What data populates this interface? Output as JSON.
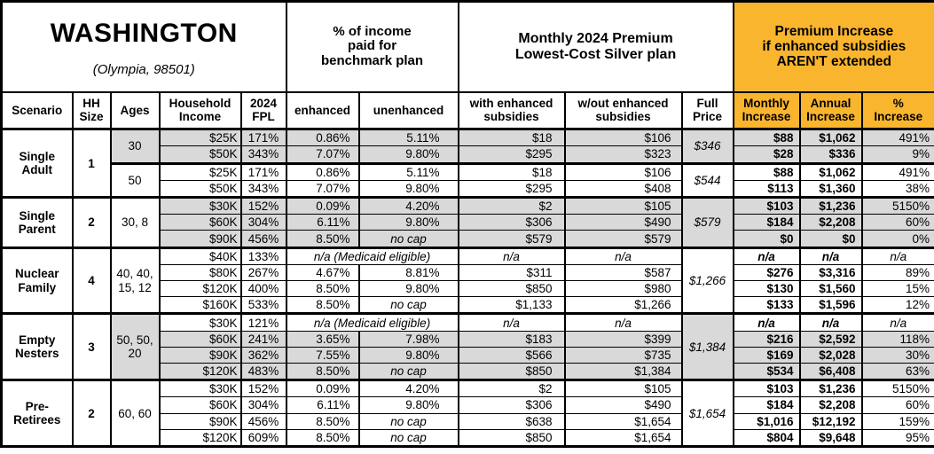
{
  "title": {
    "state": "WASHINGTON",
    "location": "(Olympia, 98501)"
  },
  "colors": {
    "accent_orange": "#FAB52E",
    "row_shade_gray": "#D9D9D9",
    "border": "#000000"
  },
  "group_headers": {
    "benchmark": "% of income\npaid for\nbenchmark plan",
    "premium": "Monthly 2024 Premium\nLowest-Cost Silver plan",
    "increase": "Premium Increase\nif enhanced subsidies\nAREN'T extended"
  },
  "columns": [
    "Scenario",
    "HH\nSize",
    "Ages",
    "Household\nIncome",
    "2024\nFPL",
    "enhanced",
    "unenhanced",
    "with enhanced\nsubsidies",
    "w/out enhanced\nsubsidies",
    "Full\nPrice",
    "Monthly\nIncrease",
    "Annual\nIncrease",
    "%\nIncrease"
  ],
  "scenarios": [
    {
      "name": "Single Adult",
      "hh_size": "1",
      "groups": [
        {
          "ages": "30",
          "ages_shaded": true,
          "full_price": "$346",
          "full_shaded": true,
          "rows": [
            {
              "income": "$25K",
              "fpl": "171%",
              "enhanced": "0.86%",
              "unenhanced": "5.11%",
              "with_subsidies": "$18",
              "without_subsidies": "$106",
              "monthly_increase": "$88",
              "annual_increase": "$1,062",
              "pct_increase": "491%",
              "shaded": true
            },
            {
              "income": "$50K",
              "fpl": "343%",
              "enhanced": "7.07%",
              "unenhanced": "9.80%",
              "with_subsidies": "$295",
              "without_subsidies": "$323",
              "monthly_increase": "$28",
              "annual_increase": "$336",
              "pct_increase": "9%",
              "shaded": true
            }
          ]
        },
        {
          "ages": "50",
          "ages_shaded": false,
          "full_price": "$544",
          "full_shaded": false,
          "rows": [
            {
              "income": "$25K",
              "fpl": "171%",
              "enhanced": "0.86%",
              "unenhanced": "5.11%",
              "with_subsidies": "$18",
              "without_subsidies": "$106",
              "monthly_increase": "$88",
              "annual_increase": "$1,062",
              "pct_increase": "491%",
              "shaded": false
            },
            {
              "income": "$50K",
              "fpl": "343%",
              "enhanced": "7.07%",
              "unenhanced": "9.80%",
              "with_subsidies": "$295",
              "without_subsidies": "$408",
              "monthly_increase": "$113",
              "annual_increase": "$1,360",
              "pct_increase": "38%",
              "shaded": false
            }
          ]
        }
      ]
    },
    {
      "name": "Single Parent",
      "hh_size": "2",
      "groups": [
        {
          "ages": "30, 8",
          "ages_shaded": false,
          "full_price": "$579",
          "full_shaded": true,
          "rows": [
            {
              "income": "$30K",
              "fpl": "152%",
              "enhanced": "0.09%",
              "unenhanced": "4.20%",
              "with_subsidies": "$2",
              "without_subsidies": "$105",
              "monthly_increase": "$103",
              "annual_increase": "$1,236",
              "pct_increase": "5150%",
              "shaded": true
            },
            {
              "income": "$60K",
              "fpl": "304%",
              "enhanced": "6.11%",
              "unenhanced": "9.80%",
              "with_subsidies": "$306",
              "without_subsidies": "$490",
              "monthly_increase": "$184",
              "annual_increase": "$2,208",
              "pct_increase": "60%",
              "shaded": true
            },
            {
              "income": "$90K",
              "fpl": "456%",
              "enhanced": "8.50%",
              "unenhanced": "no cap",
              "with_subsidies": "$579",
              "without_subsidies": "$579",
              "monthly_increase": "$0",
              "annual_increase": "$0",
              "pct_increase": "0%",
              "shaded": true
            }
          ]
        }
      ]
    },
    {
      "name": "Nuclear Family",
      "hh_size": "4",
      "groups": [
        {
          "ages": "40, 40, 15, 12",
          "ages_shaded": false,
          "full_price": "$1,266",
          "full_shaded": false,
          "rows": [
            {
              "income": "$40K",
              "fpl": "133%",
              "medicaid_note": "n/a (Medicaid eligible)",
              "with_subsidies": "n/a",
              "without_subsidies": "n/a",
              "monthly_increase": "n/a",
              "annual_increase": "n/a",
              "pct_increase": "n/a",
              "shaded": false
            },
            {
              "income": "$80K",
              "fpl": "267%",
              "enhanced": "4.67%",
              "unenhanced": "8.81%",
              "with_subsidies": "$311",
              "without_subsidies": "$587",
              "monthly_increase": "$276",
              "annual_increase": "$3,316",
              "pct_increase": "89%",
              "shaded": false
            },
            {
              "income": "$120K",
              "fpl": "400%",
              "enhanced": "8.50%",
              "unenhanced": "9.80%",
              "with_subsidies": "$850",
              "without_subsidies": "$980",
              "monthly_increase": "$130",
              "annual_increase": "$1,560",
              "pct_increase": "15%",
              "shaded": false
            },
            {
              "income": "$160K",
              "fpl": "533%",
              "enhanced": "8.50%",
              "unenhanced": "no cap",
              "with_subsidies": "$1,133",
              "without_subsidies": "$1,266",
              "monthly_increase": "$133",
              "annual_increase": "$1,596",
              "pct_increase": "12%",
              "shaded": false
            }
          ]
        }
      ]
    },
    {
      "name": "Empty Nesters",
      "hh_size": "3",
      "groups": [
        {
          "ages": "50, 50, 20",
          "ages_shaded": true,
          "full_price": "$1,384",
          "full_shaded": true,
          "rows": [
            {
              "income": "$30K",
              "fpl": "121%",
              "medicaid_note": "n/a (Medicaid eligible)",
              "with_subsidies": "n/a",
              "without_subsidies": "n/a",
              "monthly_increase": "n/a",
              "annual_increase": "n/a",
              "pct_increase": "n/a",
              "shaded": false
            },
            {
              "income": "$60K",
              "fpl": "241%",
              "enhanced": "3.65%",
              "unenhanced": "7.98%",
              "with_subsidies": "$183",
              "without_subsidies": "$399",
              "monthly_increase": "$216",
              "annual_increase": "$2,592",
              "pct_increase": "118%",
              "shaded": true
            },
            {
              "income": "$90K",
              "fpl": "362%",
              "enhanced": "7.55%",
              "unenhanced": "9.80%",
              "with_subsidies": "$566",
              "without_subsidies": "$735",
              "monthly_increase": "$169",
              "annual_increase": "$2,028",
              "pct_increase": "30%",
              "shaded": true
            },
            {
              "income": "$120K",
              "fpl": "483%",
              "enhanced": "8.50%",
              "unenhanced": "no cap",
              "with_subsidies": "$850",
              "without_subsidies": "$1,384",
              "monthly_increase": "$534",
              "annual_increase": "$6,408",
              "pct_increase": "63%",
              "shaded": true
            }
          ]
        }
      ]
    },
    {
      "name": "Pre-Retirees",
      "hh_size": "2",
      "groups": [
        {
          "ages": "60, 60",
          "ages_shaded": false,
          "full_price": "$1,654",
          "full_shaded": false,
          "rows": [
            {
              "income": "$30K",
              "fpl": "152%",
              "enhanced": "0.09%",
              "unenhanced": "4.20%",
              "with_subsidies": "$2",
              "without_subsidies": "$105",
              "monthly_increase": "$103",
              "annual_increase": "$1,236",
              "pct_increase": "5150%",
              "shaded": false
            },
            {
              "income": "$60K",
              "fpl": "304%",
              "enhanced": "6.11%",
              "unenhanced": "9.80%",
              "with_subsidies": "$306",
              "without_subsidies": "$490",
              "monthly_increase": "$184",
              "annual_increase": "$2,208",
              "pct_increase": "60%",
              "shaded": false
            },
            {
              "income": "$90K",
              "fpl": "456%",
              "enhanced": "8.50%",
              "unenhanced": "no cap",
              "with_subsidies": "$638",
              "without_subsidies": "$1,654",
              "monthly_increase": "$1,016",
              "annual_increase": "$12,192",
              "pct_increase": "159%",
              "shaded": false
            },
            {
              "income": "$120K",
              "fpl": "609%",
              "enhanced": "8.50%",
              "unenhanced": "no cap",
              "with_subsidies": "$850",
              "without_subsidies": "$1,654",
              "monthly_increase": "$804",
              "annual_increase": "$9,648",
              "pct_increase": "95%",
              "shaded": false
            }
          ]
        }
      ]
    }
  ]
}
